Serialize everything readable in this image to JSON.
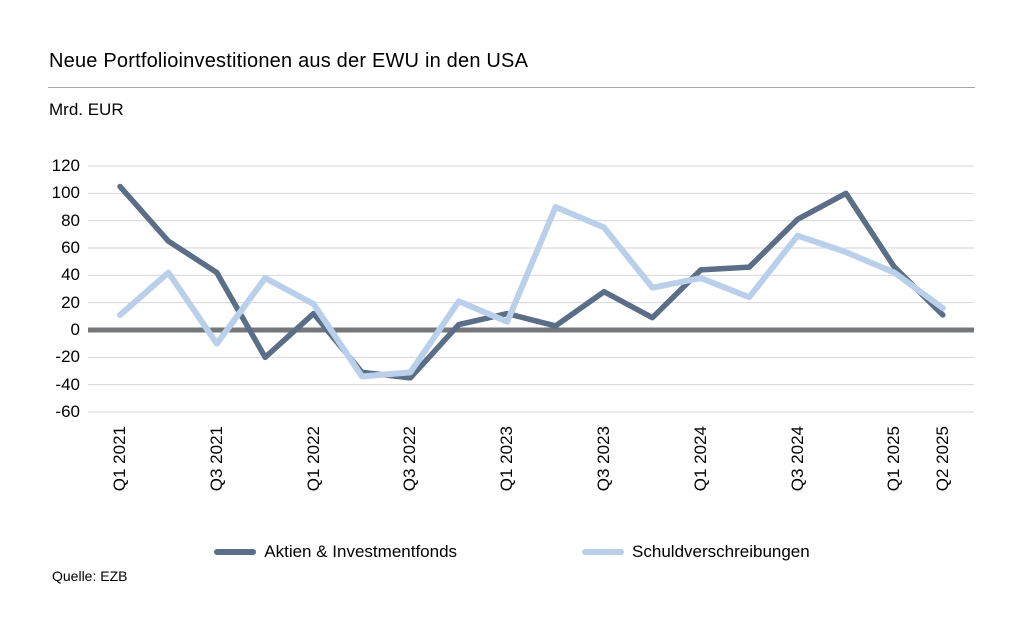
{
  "header": {
    "title": "Neue Portfolioinvestitionen aus der EWU in den USA",
    "unit_label": "Mrd. EUR"
  },
  "source": "Quelle: EZB",
  "colors": {
    "series_aktien": "#5a6e87",
    "series_schuldverschreibungen": "#bad0ea",
    "zero_line": "#75777a",
    "gridline": "#d6d6d6",
    "divider": "#a6a6a6",
    "text": "#000000"
  },
  "chart_data": {
    "type": "line",
    "title": "Neue Portfolioinvestitionen aus der EWU in den USA",
    "xlabel": "",
    "ylabel": "Mrd. EUR",
    "ylim": [
      -60,
      120
    ],
    "yticks": [
      120,
      100,
      80,
      60,
      40,
      20,
      0,
      -20,
      -40,
      -60
    ],
    "grid": true,
    "zero_line_emphasized": true,
    "legend_position": "bottom",
    "categories": [
      "Q1 2021",
      "Q2 2021",
      "Q3 2021",
      "Q4 2021",
      "Q1 2022",
      "Q2 2022",
      "Q3 2022",
      "Q4 2022",
      "Q1 2023",
      "Q2 2023",
      "Q3 2023",
      "Q4 2023",
      "Q1 2024",
      "Q2 2024",
      "Q3 2024",
      "Q4 2024",
      "Q1 2025",
      "Q2 2025"
    ],
    "x_tick_labels": [
      "Q1 2021",
      "Q3 2021",
      "Q1 2022",
      "Q3 2022",
      "Q1 2023",
      "Q3 2023",
      "Q1 2024",
      "Q3 2024",
      "Q1 2025",
      "Q2 2025"
    ],
    "series": [
      {
        "name": "Aktien & Investmentfonds",
        "color": "#5a6e87",
        "values": [
          105,
          65,
          42,
          -20,
          12,
          -31,
          -35,
          4,
          12,
          3,
          28,
          9,
          44,
          46,
          81,
          100,
          46,
          11
        ]
      },
      {
        "name": "Schuldverschreibungen",
        "color": "#bad0ea",
        "values": [
          11,
          42,
          -10,
          38,
          19,
          -34,
          -31,
          21,
          6,
          90,
          75,
          31,
          38,
          24,
          69,
          57,
          42,
          16
        ]
      }
    ]
  }
}
